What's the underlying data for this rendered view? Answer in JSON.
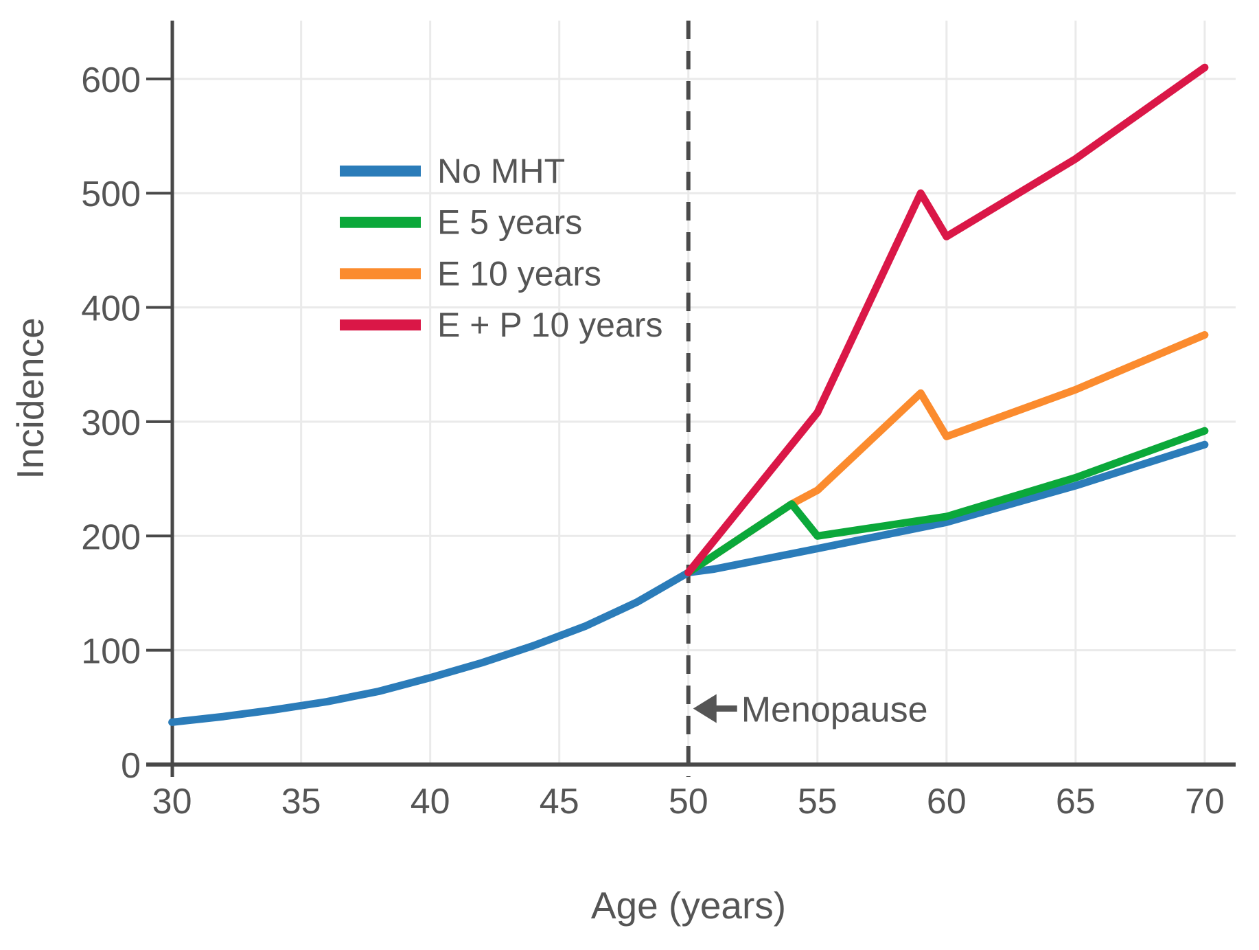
{
  "chart_data": {
    "type": "line",
    "title": "",
    "xlabel": "Age (years)",
    "ylabel": "Incidence",
    "x_ticks": [
      30,
      35,
      40,
      45,
      50,
      55,
      60,
      65,
      70
    ],
    "y_ticks": [
      0,
      100,
      200,
      300,
      400,
      500,
      600
    ],
    "xlim": [
      29,
      71.2
    ],
    "ylim": [
      0,
      651
    ],
    "grid": true,
    "legend_position": "upper-left-inside",
    "series": [
      {
        "name": "No MHT",
        "color": "#2b7cb9",
        "points": [
          [
            30,
            37
          ],
          [
            32,
            42
          ],
          [
            34,
            48
          ],
          [
            36,
            55
          ],
          [
            38,
            64
          ],
          [
            40,
            76
          ],
          [
            42,
            89
          ],
          [
            44,
            104
          ],
          [
            46,
            121
          ],
          [
            48,
            142
          ],
          [
            50,
            168
          ],
          [
            51,
            171
          ],
          [
            55,
            189
          ],
          [
            60,
            212
          ],
          [
            65,
            244
          ],
          [
            70,
            280
          ]
        ]
      },
      {
        "name": "E 5 years",
        "color": "#0ba83a",
        "points": [
          [
            50,
            168
          ],
          [
            54,
            228
          ],
          [
            55,
            200
          ],
          [
            60,
            217
          ],
          [
            65,
            251
          ],
          [
            70,
            292
          ]
        ]
      },
      {
        "name": "E 10 years",
        "color": "#fb8b2e",
        "points": [
          [
            50,
            168
          ],
          [
            54,
            228
          ],
          [
            55,
            240
          ],
          [
            59,
            325
          ],
          [
            60,
            287
          ],
          [
            65,
            328
          ],
          [
            70,
            376
          ]
        ]
      },
      {
        "name": "E + P 10 years",
        "color": "#da1747",
        "points": [
          [
            50,
            168
          ],
          [
            55,
            308
          ],
          [
            59,
            500
          ],
          [
            60,
            462
          ],
          [
            65,
            530
          ],
          [
            70,
            610
          ]
        ]
      }
    ],
    "annotations": [
      {
        "label": "Menopause",
        "x": 50,
        "y": 49,
        "arrow": "left-arrow"
      }
    ],
    "vline": {
      "x": 50,
      "style": "dashed",
      "color": "#4a4a4a"
    }
  },
  "styles": {
    "background": "#ffffff",
    "axis_color": "#484848",
    "grid_color": "#eaeaea",
    "text_color": "#555555",
    "dash_color": "#4a4a4a"
  }
}
